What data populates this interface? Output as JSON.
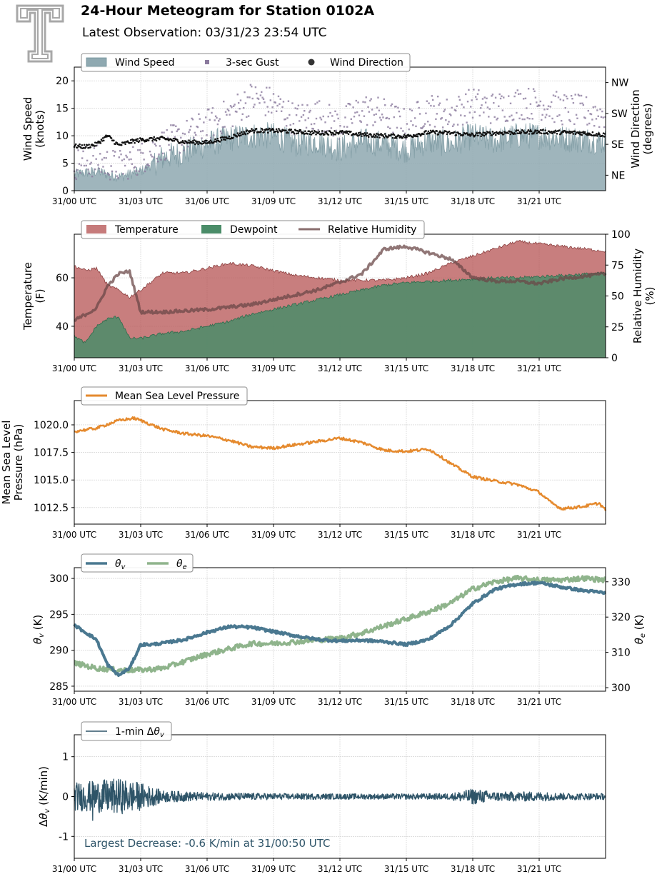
{
  "header": {
    "title": "24-Hour Meteogram for Station 0102A",
    "subtitle": "Latest Observation: 03/31/23 23:54 UTC"
  },
  "colors": {
    "wind_speed": "#8fa9b1",
    "wind_speed_line": "#6f8f98",
    "gust": "#8b7a9e",
    "wind_direction": "#111111",
    "temperature": "#b85a5a",
    "dewpoint": "#4a8c68",
    "relative_humidity": "#6b4848",
    "pressure": "#e58a2e",
    "theta_v": "#4a7890",
    "theta_e": "#8fb48c",
    "delta_theta_v": "#2e5468",
    "logo": "#a8a8a8"
  },
  "x_ticks": [
    "31/00 UTC",
    "31/03 UTC",
    "31/06 UTC",
    "31/09 UTC",
    "31/12 UTC",
    "31/15 UTC",
    "31/18 UTC",
    "31/21 UTC"
  ],
  "chart_data": [
    {
      "type": "area",
      "panel": "wind",
      "ylabel": "Wind Speed\n(knots)",
      "ylim": [
        0,
        22.5
      ],
      "yticks": [
        "0",
        "5",
        "10",
        "15",
        "20"
      ],
      "y2label": "Wind Direction\n(degrees)",
      "y2lim": [
        0,
        360
      ],
      "y2ticks": [
        "NE",
        "SE",
        "SW",
        "NW"
      ],
      "y2tick_values": [
        45,
        135,
        225,
        315
      ],
      "xlim_hours": [
        0,
        24
      ],
      "grid": true,
      "legend": "top-left",
      "series": [
        {
          "name": "Wind Speed",
          "kind": "area",
          "x_hours": [
            0,
            1,
            2,
            3,
            4,
            5,
            6,
            7,
            8,
            9,
            10,
            11,
            12,
            13,
            14,
            15,
            16,
            17,
            18,
            19,
            20,
            21,
            22,
            24
          ],
          "values": [
            3,
            3.5,
            2.5,
            3.5,
            6,
            7,
            8.5,
            9.5,
            10,
            10,
            8.5,
            9,
            7.5,
            9,
            8.5,
            7.5,
            9,
            8.5,
            10,
            9,
            10,
            10,
            9.5,
            9
          ]
        },
        {
          "name": "3-sec Gust",
          "kind": "scatter",
          "x_hours": [
            0,
            1,
            2,
            3,
            4,
            5,
            6,
            7,
            8,
            9,
            10,
            11,
            12,
            13,
            14,
            15,
            16,
            17,
            18,
            19,
            20,
            21,
            22,
            24
          ],
          "values": [
            4,
            4.5,
            3.5,
            5,
            7.5,
            9,
            11,
            13,
            16,
            15,
            12,
            13,
            11,
            14,
            13,
            11,
            14,
            13,
            15,
            14,
            15,
            15,
            14,
            13
          ]
        },
        {
          "name": "Wind Direction",
          "kind": "scatter",
          "x_hours": [
            0,
            0.5,
            1,
            1.5,
            2,
            2.5,
            3,
            4,
            5,
            6,
            7,
            8,
            9,
            10,
            11,
            12,
            13,
            14,
            15,
            16,
            17,
            18,
            19,
            20,
            21,
            22,
            23,
            24
          ],
          "values": [
            130,
            128,
            135,
            160,
            132,
            142,
            148,
            152,
            142,
            140,
            155,
            175,
            175,
            172,
            168,
            170,
            163,
            160,
            158,
            170,
            168,
            162,
            168,
            170,
            172,
            170,
            168,
            162
          ]
        }
      ]
    },
    {
      "type": "area",
      "panel": "temperature",
      "ylabel": "Temperature\n(F)",
      "ylim": [
        27,
        78
      ],
      "yticks": [
        "40",
        "60"
      ],
      "y2label": "Relative Humidity\n(%)",
      "y2lim": [
        0,
        100
      ],
      "y2ticks": [
        "0",
        "25",
        "50",
        "75",
        "100"
      ],
      "xlim_hours": [
        0,
        24
      ],
      "grid": true,
      "legend": "top-left",
      "series": [
        {
          "name": "Temperature",
          "kind": "area",
          "x_hours": [
            0,
            0.5,
            1,
            1.5,
            2,
            2.5,
            3,
            4,
            5,
            6,
            7,
            8,
            9,
            10,
            11,
            12,
            13,
            14,
            15,
            16,
            17,
            18,
            19,
            20,
            21,
            22,
            23,
            24
          ],
          "values": [
            65,
            63,
            64,
            57,
            55,
            52,
            55,
            62,
            62,
            64,
            66,
            65,
            63,
            61,
            60,
            59,
            59,
            59,
            60,
            62,
            66,
            69,
            72,
            75,
            74,
            73,
            72,
            71
          ]
        },
        {
          "name": "Dewpoint",
          "kind": "area",
          "x_hours": [
            0,
            0.5,
            1,
            1.5,
            2,
            2.5,
            3,
            4,
            5,
            6,
            7,
            8,
            9,
            10,
            11,
            12,
            13,
            14,
            15,
            16,
            17,
            18,
            19,
            20,
            21,
            22,
            23,
            24
          ],
          "values": [
            36,
            33,
            40,
            43,
            44,
            35,
            35,
            37,
            38,
            40,
            42,
            45,
            47,
            49,
            51,
            53,
            55,
            57,
            58,
            58.5,
            59,
            59.5,
            60,
            60,
            60.5,
            61,
            61.5,
            62
          ]
        },
        {
          "name": "Relative Humidity",
          "kind": "line",
          "x_hours": [
            0,
            0.5,
            1,
            1.5,
            2,
            2.5,
            3,
            4,
            5,
            6,
            7,
            8,
            9,
            10,
            11,
            12,
            13,
            14,
            15,
            16,
            17,
            18,
            19,
            20,
            21,
            22,
            23,
            24
          ],
          "values": [
            30,
            35,
            40,
            58,
            68,
            70,
            37,
            37,
            38,
            39,
            41,
            43,
            47,
            51,
            55,
            61,
            68,
            88,
            90,
            85,
            80,
            65,
            62,
            62,
            60,
            64,
            66,
            68
          ]
        }
      ]
    },
    {
      "type": "line",
      "panel": "pressure",
      "ylabel": "Mean Sea Level\nPressure (hPa)",
      "ylim": [
        1011,
        1022.2
      ],
      "yticks": [
        "1012.5",
        "1015.0",
        "1017.5",
        "1020.0"
      ],
      "xlim_hours": [
        0,
        24
      ],
      "grid": true,
      "legend": "top-left",
      "series": [
        {
          "name": "Mean Sea Level Pressure",
          "x_hours": [
            0,
            1,
            2,
            2.7,
            3,
            4,
            5,
            6,
            7,
            8,
            9,
            10,
            11,
            12,
            13,
            14,
            15,
            16,
            16.5,
            17,
            18,
            19,
            20,
            21,
            21.5,
            22,
            23,
            23.7,
            24
          ],
          "values": [
            1019.4,
            1019.7,
            1020.4,
            1020.6,
            1020.4,
            1019.6,
            1019.2,
            1019.0,
            1018.6,
            1018.0,
            1017.9,
            1018.2,
            1018.5,
            1018.8,
            1018.4,
            1017.7,
            1017.6,
            1017.8,
            1017.2,
            1016.5,
            1015.3,
            1014.9,
            1014.6,
            1013.9,
            1013.0,
            1012.4,
            1012.6,
            1012.9,
            1012.3
          ]
        }
      ]
    },
    {
      "type": "line",
      "panel": "theta",
      "ylabel": "θv (K)",
      "ylim": [
        284.3,
        301.5
      ],
      "yticks": [
        "285",
        "290",
        "295",
        "300"
      ],
      "y2label": "θe (K)",
      "y2lim": [
        299,
        334
      ],
      "y2ticks": [
        "300",
        "310",
        "320",
        "330"
      ],
      "xlim_hours": [
        0,
        24
      ],
      "grid": true,
      "legend": "top-left",
      "series": [
        {
          "name": "θv",
          "x_hours": [
            0,
            0.5,
            1,
            1.5,
            2,
            2.5,
            3,
            3.5,
            4,
            5,
            6,
            7,
            8,
            9,
            10,
            11,
            12,
            13,
            14,
            15,
            16,
            17,
            18,
            19,
            20,
            21,
            22,
            23,
            24
          ],
          "values": [
            293.5,
            292.5,
            291.5,
            288,
            286.5,
            287.5,
            290.8,
            290.8,
            291,
            291.5,
            292.5,
            293.3,
            293.2,
            292.6,
            292,
            291.5,
            291.3,
            291.4,
            291.2,
            290.8,
            291.5,
            293.5,
            296.5,
            298.5,
            299.2,
            299.4,
            298.8,
            298.3,
            298
          ]
        },
        {
          "name": "θe",
          "x_hours": [
            0,
            1,
            2,
            3,
            4,
            5,
            6,
            7,
            8,
            9,
            10,
            11,
            12,
            13,
            14,
            15,
            16,
            17,
            18,
            19,
            20,
            21,
            22,
            23,
            24
          ],
          "values": [
            307,
            305.5,
            305,
            305,
            305.5,
            307.5,
            309.5,
            311,
            312.5,
            312.5,
            313,
            313.5,
            314,
            315.5,
            317.5,
            319.5,
            321.5,
            324,
            328,
            330,
            331,
            330.5,
            330.5,
            331,
            330.5
          ]
        }
      ]
    },
    {
      "type": "line",
      "panel": "delta-theta",
      "ylabel": "Δθv (K/min)",
      "ylim": [
        -1.55,
        1.55
      ],
      "yticks": [
        "-1",
        "0",
        "1"
      ],
      "xlim_hours": [
        0,
        24
      ],
      "grid": true,
      "legend": "top-left",
      "annotation": "Largest Decrease: -0.6 K/min at 31/00:50 UTC",
      "series": [
        {
          "name": "1-min Δθv",
          "envelope_x_hours": [
            0,
            1,
            2,
            3,
            4,
            6,
            9,
            12,
            15,
            17,
            18,
            19,
            20,
            21,
            22,
            24
          ],
          "envelope_values": [
            0.35,
            0.4,
            0.45,
            0.35,
            0.15,
            0.1,
            0.08,
            0.07,
            0.07,
            0.08,
            0.2,
            0.12,
            0.12,
            0.12,
            0.09,
            0.08
          ]
        }
      ]
    }
  ]
}
